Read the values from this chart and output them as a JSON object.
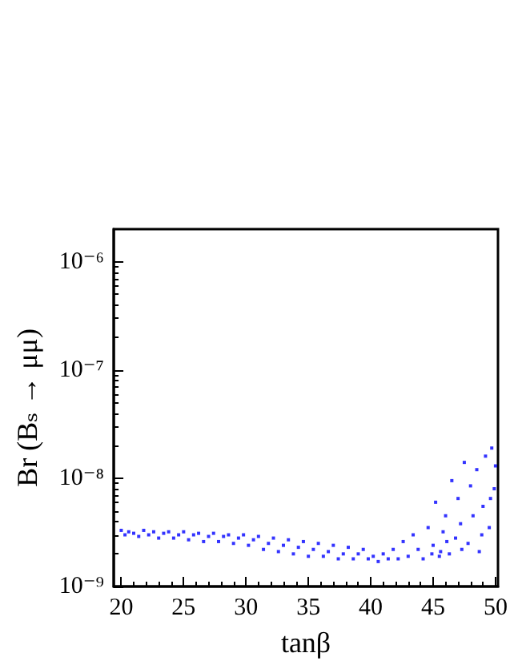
{
  "chart_data": {
    "type": "scatter",
    "xlabel": "tanβ",
    "ylabel": "Br (Bₛ → μμ)",
    "log": "y",
    "grid": false,
    "marker": "square",
    "xlim": [
      19.4,
      50.2
    ],
    "xticks": [
      20,
      25,
      30,
      35,
      40,
      45,
      50
    ],
    "ylim": [
      1e-09,
      2e-06
    ],
    "yticks": [
      {
        "value": 1e-09,
        "label": "10⁻⁹"
      },
      {
        "value": 1e-08,
        "label": "10⁻⁸"
      },
      {
        "value": 1e-07,
        "label": "10⁻⁷"
      },
      {
        "value": 1e-06,
        "label": "10⁻⁶"
      }
    ],
    "series": [
      {
        "color": "#0000ff",
        "x": [
          20,
          20.3,
          20.6,
          21,
          21.4,
          21.8,
          22.2,
          22.6,
          23,
          23.4,
          23.8,
          24.2,
          24.6,
          25,
          25.4,
          25.8,
          26.2,
          26.6,
          27,
          27.4,
          27.8,
          28.2,
          28.6,
          29,
          29.4,
          29.8,
          30.2,
          30.6,
          31,
          31.4,
          31.8,
          32.2,
          32.6,
          33,
          33.4,
          33.8,
          34.2,
          34.6,
          35,
          35.4,
          35.8,
          36.2,
          36.6,
          37,
          37.4,
          37.8,
          38.2,
          38.6,
          39,
          39.4,
          39.8,
          40.2,
          40.6,
          41,
          41.4,
          41.8,
          42.2,
          42.6,
          43,
          43.4,
          43.8,
          44.2,
          44.6,
          45,
          45.2,
          45.5,
          45.8,
          46,
          46.3,
          46.5,
          46.8,
          47,
          47.2,
          47.5,
          47.8,
          48,
          48.2,
          48.5,
          48.7,
          49,
          49.2,
          49.5,
          49.7,
          49.9,
          50,
          45.6,
          47.3,
          48.9,
          49.6,
          46.1,
          44.9
        ],
        "values": [
          3.3e-09,
          3e-09,
          3.2e-09,
          3.1e-09,
          2.9e-09,
          3.3e-09,
          3e-09,
          3.2e-09,
          2.8e-09,
          3.1e-09,
          3.2e-09,
          2.8e-09,
          3e-09,
          3.2e-09,
          2.7e-09,
          3e-09,
          3.1e-09,
          2.6e-09,
          2.9e-09,
          3.1e-09,
          2.6e-09,
          2.9e-09,
          3e-09,
          2.5e-09,
          2.8e-09,
          3e-09,
          2.4e-09,
          2.7e-09,
          2.9e-09,
          2.2e-09,
          2.5e-09,
          2.8e-09,
          2.1e-09,
          2.4e-09,
          2.7e-09,
          2e-09,
          2.3e-09,
          2.6e-09,
          1.9e-09,
          2.2e-09,
          2.5e-09,
          1.9e-09,
          2.1e-09,
          2.4e-09,
          1.8e-09,
          2e-09,
          2.3e-09,
          1.8e-09,
          2e-09,
          2.2e-09,
          1.8e-09,
          1.9e-09,
          1.7e-09,
          2e-09,
          1.8e-09,
          2.2e-09,
          1.8e-09,
          2.6e-09,
          1.9e-09,
          3e-09,
          2.2e-09,
          1.8e-09,
          3.5e-09,
          2.4e-09,
          6e-09,
          1.9e-09,
          3.2e-09,
          4.5e-09,
          2e-09,
          9.5e-09,
          2.8e-09,
          6.5e-09,
          3.8e-09,
          1.4e-08,
          2.5e-09,
          8.5e-09,
          4.5e-09,
          1.2e-08,
          2.1e-09,
          5.5e-09,
          1.6e-08,
          3.5e-09,
          1.9e-08,
          8e-09,
          1.3e-08,
          2.1e-09,
          2.2e-09,
          3e-09,
          6.5e-09,
          2.6e-09,
          2e-09
        ]
      }
    ]
  }
}
